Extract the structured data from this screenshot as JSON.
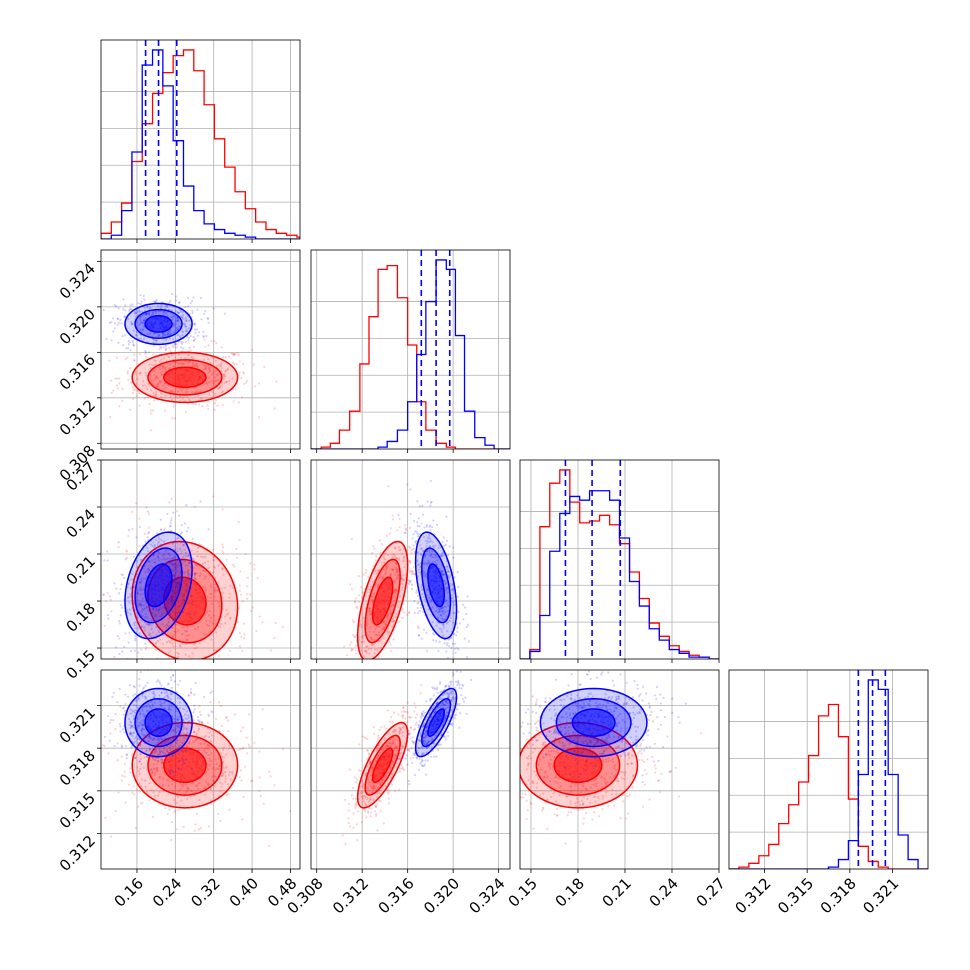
{
  "chart_data": {
    "type": "corner",
    "grid": true,
    "series": [
      {
        "color": "#ff0000",
        "mean": [
          0.26,
          0.3138,
          0.18,
          0.3168
        ],
        "sd": [
          0.055,
          0.0011,
          0.019,
          0.0015
        ],
        "corr": [
          [
            1,
            0,
            -0.1,
            0
          ],
          [
            0,
            1,
            0.6,
            0.75
          ],
          [
            -0.1,
            0.6,
            1,
            0
          ],
          [
            0,
            0.75,
            0,
            1
          ]
        ]
      },
      {
        "color": "#0000ff",
        "mean": [
          0.205,
          0.3185,
          0.19,
          0.3198
        ],
        "sd": [
          0.035,
          0.0009,
          0.017,
          0.0012
        ],
        "corr": [
          [
            1,
            0,
            0.3,
            0
          ],
          [
            0,
            1,
            -0.45,
            0.75
          ],
          [
            0.3,
            -0.45,
            1,
            0
          ],
          [
            0,
            0.75,
            0,
            1
          ]
        ]
      }
    ],
    "parameters": [
      {
        "range": [
          0.085,
          0.5
        ],
        "ticks": [
          0.16,
          0.24,
          0.32,
          0.4,
          0.48
        ],
        "tick_labels": [
          "0.16",
          "0.24",
          "0.32",
          "0.40",
          "0.48"
        ]
      },
      {
        "range": [
          0.3075,
          0.325
        ],
        "ticks": [
          0.308,
          0.312,
          0.316,
          0.32,
          0.324
        ],
        "tick_labels": [
          "0.308",
          "0.312",
          "0.316",
          "0.320",
          "0.324"
        ]
      },
      {
        "range": [
          0.143,
          0.27
        ],
        "ticks": [
          0.15,
          0.18,
          0.21,
          0.24,
          0.27
        ],
        "tick_labels": [
          "0.15",
          "0.18",
          "0.21",
          "0.24",
          "0.27"
        ]
      },
      {
        "range": [
          0.3095,
          0.3235
        ],
        "ticks": [
          0.312,
          0.315,
          0.318,
          0.321
        ],
        "tick_labels": [
          "0.312",
          "0.315",
          "0.318",
          "0.321"
        ]
      }
    ],
    "quantile_lines": {
      "color": "#0000ff",
      "style": "dashed",
      "values": [
        [
          0.178,
          0.205,
          0.243
        ],
        [
          0.3172,
          0.3185,
          0.3197
        ],
        [
          0.172,
          0.189,
          0.207
        ],
        [
          0.3186,
          0.3196,
          0.3205
        ]
      ]
    },
    "histograms": [
      {
        "red": {
          "edges": [
            0.085,
            0.1065,
            0.128,
            0.1495,
            0.171,
            0.1925,
            0.214,
            0.2355,
            0.257,
            0.2785,
            0.3,
            0.3215,
            0.343,
            0.3645,
            0.386,
            0.4075,
            0.429,
            0.4505,
            0.472,
            0.4935,
            0.5
          ],
          "counts": [
            0.03,
            0.09,
            0.19,
            0.41,
            0.61,
            0.77,
            0.88,
            0.97,
            1.0,
            0.89,
            0.71,
            0.53,
            0.38,
            0.25,
            0.16,
            0.09,
            0.05,
            0.03,
            0.02,
            0.01
          ]
        },
        "blue": {
          "edges": [
            0.085,
            0.1065,
            0.128,
            0.1495,
            0.171,
            0.1925,
            0.214,
            0.2355,
            0.257,
            0.2785,
            0.3,
            0.3215,
            0.343,
            0.3645,
            0.386,
            0.4075,
            0.429,
            0.4505,
            0.472,
            0.4935,
            0.5
          ],
          "counts": [
            0.0,
            0.02,
            0.15,
            0.46,
            0.92,
            1.0,
            0.81,
            0.52,
            0.28,
            0.15,
            0.08,
            0.05,
            0.03,
            0.02,
            0.01,
            0.0,
            0.0,
            0.0,
            0.0,
            0.0
          ]
        }
      },
      {
        "red": {
          "edges": [
            0.3075,
            0.3084,
            0.3092,
            0.31,
            0.3109,
            0.3118,
            0.3126,
            0.3134,
            0.3142,
            0.3151,
            0.316,
            0.3168,
            0.3176,
            0.3185,
            0.3194,
            0.3202,
            0.321,
            0.3219,
            0.3228,
            0.3236,
            0.325
          ],
          "counts": [
            0.0,
            0.01,
            0.03,
            0.1,
            0.2,
            0.45,
            0.7,
            0.95,
            0.97,
            0.8,
            0.55,
            0.25,
            0.1,
            0.03,
            0.01,
            0.0,
            0.0,
            0.0,
            0.0,
            0.0
          ]
        },
        "blue": {
          "edges": [
            0.3075,
            0.3084,
            0.3092,
            0.31,
            0.3109,
            0.3118,
            0.3126,
            0.3134,
            0.3142,
            0.3151,
            0.316,
            0.3168,
            0.3176,
            0.3185,
            0.3194,
            0.3202,
            0.321,
            0.3219,
            0.3228,
            0.3236,
            0.325
          ],
          "counts": [
            0.0,
            0.0,
            0.0,
            0.0,
            0.0,
            0.0,
            0.0,
            0.01,
            0.04,
            0.1,
            0.25,
            0.5,
            0.78,
            1.0,
            0.95,
            0.6,
            0.2,
            0.06,
            0.02,
            0.0
          ]
        }
      },
      {
        "red": {
          "edges": [
            0.143,
            0.1493,
            0.1557,
            0.162,
            0.1684,
            0.1748,
            0.1811,
            0.1874,
            0.1938,
            0.2002,
            0.2065,
            0.2129,
            0.2192,
            0.2255,
            0.2319,
            0.2383,
            0.2446,
            0.2509,
            0.2573,
            0.2637,
            0.27
          ],
          "counts": [
            0.0,
            0.05,
            0.7,
            0.93,
            1.0,
            0.83,
            0.72,
            0.73,
            0.76,
            0.71,
            0.61,
            0.46,
            0.32,
            0.19,
            0.12,
            0.07,
            0.04,
            0.02,
            0.01,
            0.0
          ]
        },
        "blue": {
          "edges": [
            0.143,
            0.1493,
            0.1557,
            0.162,
            0.1684,
            0.1748,
            0.1811,
            0.1874,
            0.1938,
            0.2002,
            0.2065,
            0.2129,
            0.2192,
            0.2255,
            0.2319,
            0.2383,
            0.2446,
            0.2509,
            0.2573,
            0.2637,
            0.27
          ],
          "counts": [
            0.0,
            0.04,
            0.23,
            0.57,
            0.77,
            0.86,
            0.84,
            0.89,
            0.89,
            0.84,
            0.64,
            0.41,
            0.28,
            0.16,
            0.1,
            0.05,
            0.03,
            0.01,
            0.01,
            0.0
          ]
        }
      },
      {
        "red": {
          "edges": [
            0.3095,
            0.3102,
            0.3109,
            0.3116,
            0.3123,
            0.313,
            0.3137,
            0.3144,
            0.3151,
            0.3158,
            0.3165,
            0.3172,
            0.3179,
            0.3186,
            0.3193,
            0.32,
            0.3207,
            0.3214,
            0.3221,
            0.3228,
            0.3235
          ],
          "counts": [
            0.0,
            0.01,
            0.03,
            0.07,
            0.13,
            0.24,
            0.34,
            0.46,
            0.6,
            0.81,
            0.87,
            0.7,
            0.37,
            0.12,
            0.04,
            0.01,
            0.0,
            0.0,
            0.0,
            0.0
          ]
        },
        "blue": {
          "edges": [
            0.3095,
            0.3102,
            0.3109,
            0.3116,
            0.3123,
            0.313,
            0.3137,
            0.3144,
            0.3151,
            0.3158,
            0.3165,
            0.3172,
            0.3179,
            0.3186,
            0.3193,
            0.32,
            0.3207,
            0.3214,
            0.3221,
            0.3228,
            0.3235
          ],
          "counts": [
            0.0,
            0.0,
            0.0,
            0.0,
            0.0,
            0.0,
            0.0,
            0.0,
            0.0,
            0.0,
            0.01,
            0.05,
            0.15,
            0.5,
            1.0,
            0.95,
            0.5,
            0.18,
            0.05,
            0.0
          ]
        }
      }
    ]
  }
}
